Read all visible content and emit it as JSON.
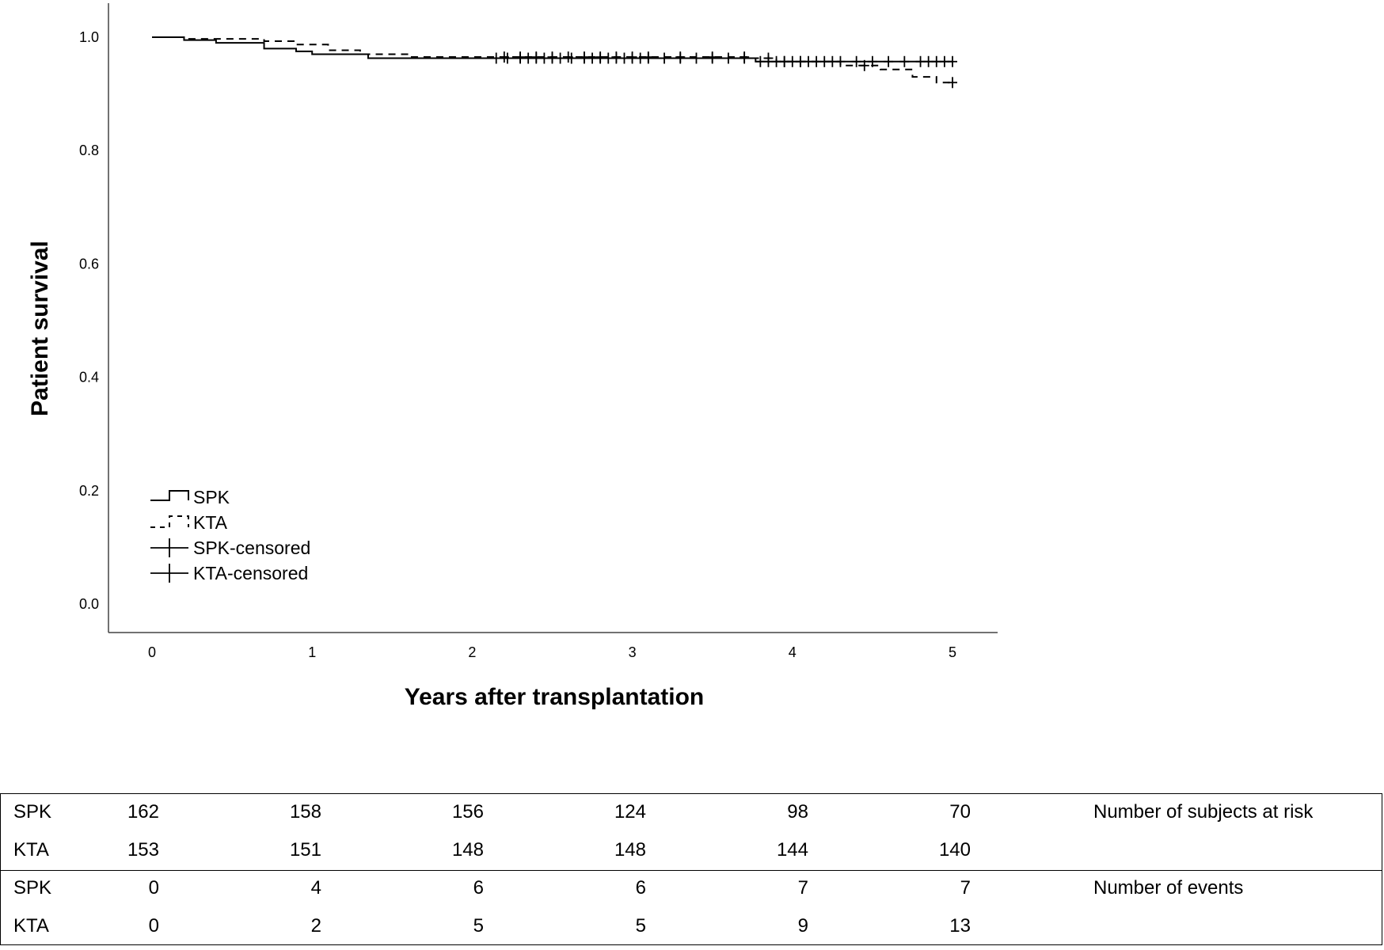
{
  "chart_data": {
    "type": "line",
    "title": "",
    "xlabel": "Years after transplantation",
    "ylabel": "Patient survival",
    "xlim": [
      0,
      5
    ],
    "ylim": [
      0,
      1
    ],
    "x_ticks": [
      "0",
      "1",
      "2",
      "3",
      "4",
      "5"
    ],
    "y_ticks": [
      "0.0",
      "0.2",
      "0.4",
      "0.6",
      "0.8",
      "1.0"
    ],
    "grid": false,
    "legend_position": "bottom-left",
    "legend": [
      "SPK",
      "KTA",
      "SPK-censored",
      "KTA-censored"
    ],
    "series": [
      {
        "name": "SPK",
        "style": "solid",
        "color": "#000000",
        "steps": [
          [
            0,
            1.0
          ],
          [
            0.2,
            0.995
          ],
          [
            0.4,
            0.99
          ],
          [
            0.7,
            0.98
          ],
          [
            0.9,
            0.975
          ],
          [
            1.0,
            0.97
          ],
          [
            1.35,
            0.963
          ],
          [
            3.77,
            0.957
          ],
          [
            5.0,
            0.957
          ]
        ],
        "censored_x": [
          2.15,
          2.22,
          2.3,
          2.35,
          2.4,
          2.45,
          2.5,
          2.55,
          2.62,
          2.7,
          2.75,
          2.8,
          2.85,
          2.9,
          2.95,
          3.0,
          3.05,
          3.1,
          3.2,
          3.3,
          3.4,
          3.5,
          3.6,
          3.7,
          3.8,
          3.85,
          3.9,
          3.95,
          4.0,
          4.05,
          4.1,
          4.2,
          4.3,
          4.4,
          4.5,
          4.6,
          4.7,
          4.8,
          4.85,
          4.9,
          4.95,
          5.0
        ]
      },
      {
        "name": "KTA",
        "style": "dashed",
        "color": "#000000",
        "steps": [
          [
            0,
            1.0
          ],
          [
            0.2,
            0.997
          ],
          [
            0.7,
            0.993
          ],
          [
            0.9,
            0.987
          ],
          [
            1.1,
            0.977
          ],
          [
            1.3,
            0.97
          ],
          [
            1.6,
            0.965
          ],
          [
            3.75,
            0.963
          ],
          [
            3.9,
            0.957
          ],
          [
            4.3,
            0.95
          ],
          [
            4.55,
            0.943
          ],
          [
            4.75,
            0.93
          ],
          [
            4.9,
            0.92
          ],
          [
            5.0,
            0.92
          ]
        ],
        "censored_x": [
          2.2,
          2.3,
          2.4,
          2.5,
          2.6,
          2.7,
          2.8,
          2.9,
          3.0,
          3.1,
          3.3,
          3.5,
          3.7,
          3.85,
          3.95,
          4.05,
          4.15,
          4.25,
          4.45,
          5.0
        ]
      }
    ]
  },
  "risk_table": {
    "sections": [
      {
        "note": "Number of subjects at risk",
        "rows": [
          {
            "group": "SPK",
            "values": [
              "162",
              "158",
              "156",
              "124",
              "98",
              "70"
            ]
          },
          {
            "group": "KTA",
            "values": [
              "153",
              "151",
              "148",
              "148",
              "144",
              "140"
            ]
          }
        ]
      },
      {
        "note": "Number of events",
        "rows": [
          {
            "group": "SPK",
            "values": [
              "0",
              "4",
              "6",
              "6",
              "7",
              "7"
            ]
          },
          {
            "group": "KTA",
            "values": [
              "0",
              "2",
              "5",
              "5",
              "9",
              "13"
            ]
          }
        ]
      }
    ]
  }
}
